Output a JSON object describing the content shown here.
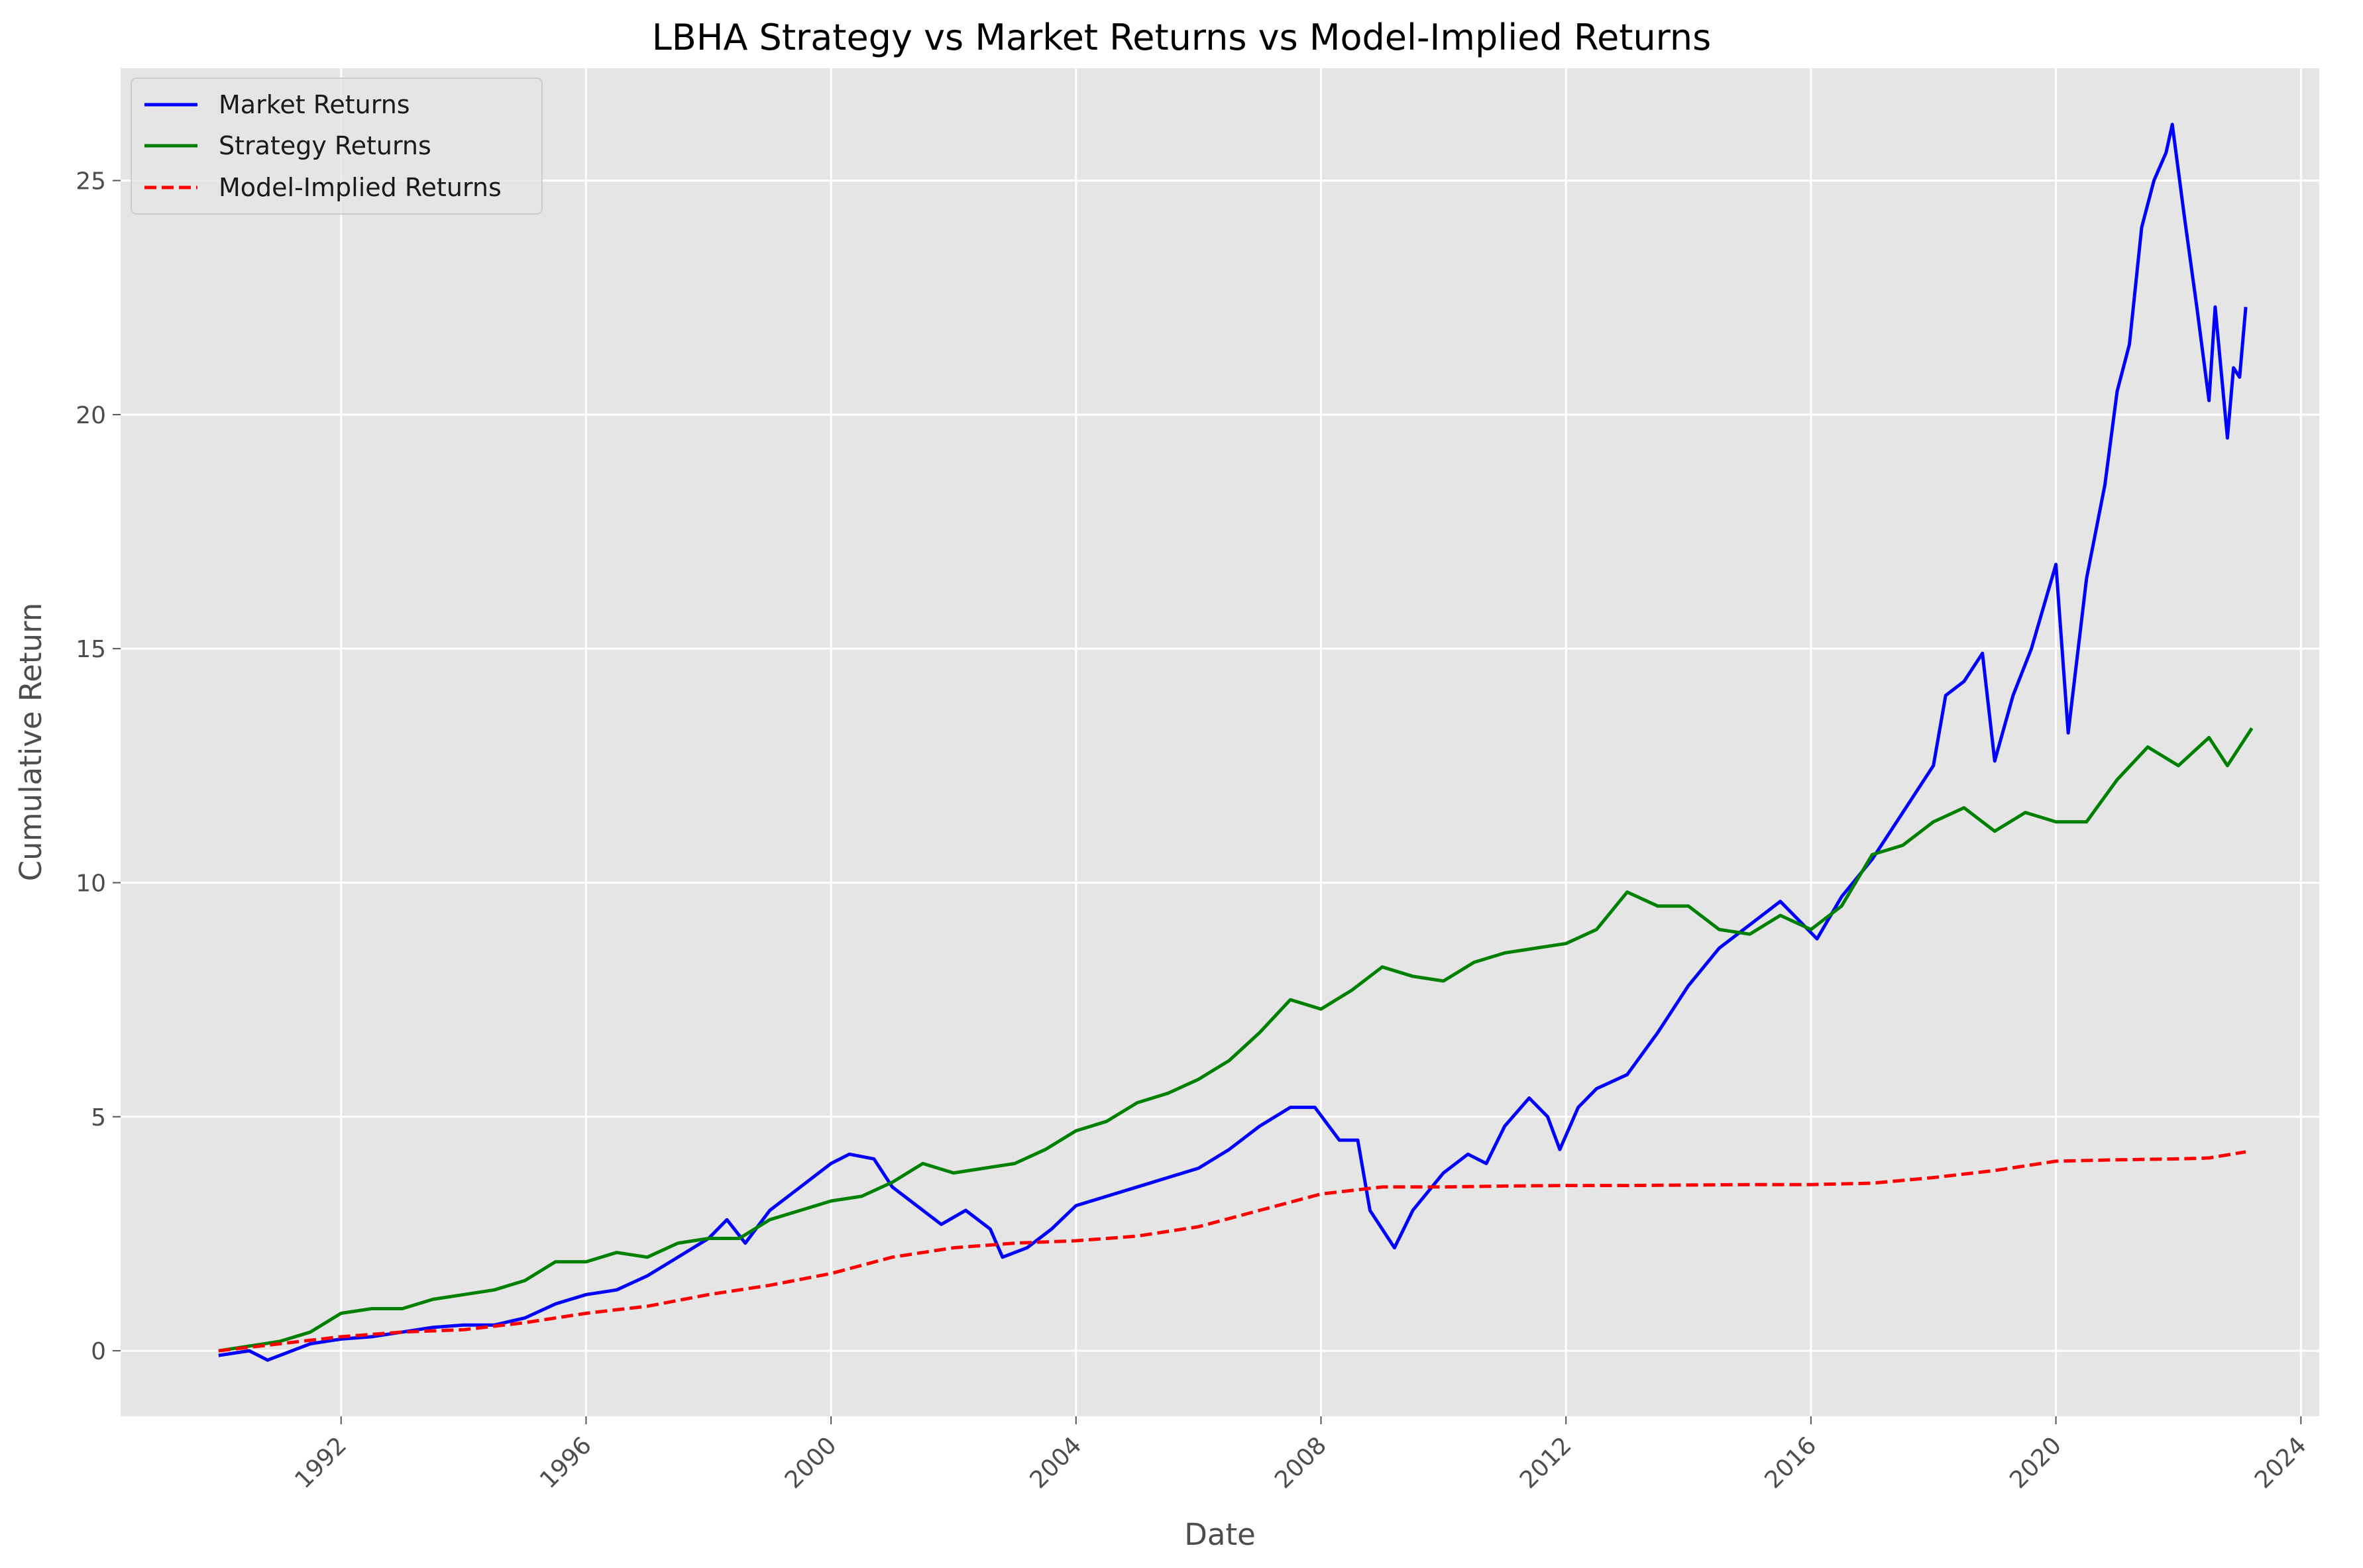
{
  "chart_data": {
    "type": "line",
    "title": "LBHA Strategy vs Market Returns vs Model-Implied Returns",
    "xlabel": "Date",
    "ylabel": "Cumulative Return",
    "x_ticks": [
      "1992",
      "1996",
      "2000",
      "2004",
      "2008",
      "2012",
      "2016",
      "2020",
      "2024"
    ],
    "y_ticks": [
      "0",
      "5",
      "10",
      "15",
      "20",
      "25"
    ],
    "xlim": [
      1988.4,
      2024.3
    ],
    "ylim": [
      -1.4,
      27.4
    ],
    "grid": true,
    "legend_position": "top-left",
    "background_color": "#e5e5e5",
    "grid_color": "#ffffff",
    "series": [
      {
        "name": "Market Returns",
        "color": "#0000ff",
        "style": "solid",
        "points": [
          [
            1990.0,
            -0.1
          ],
          [
            1990.5,
            0.0
          ],
          [
            1990.8,
            -0.2
          ],
          [
            1991.2,
            0.0
          ],
          [
            1991.5,
            0.15
          ],
          [
            1992.0,
            0.25
          ],
          [
            1992.5,
            0.3
          ],
          [
            1993.0,
            0.4
          ],
          [
            1993.5,
            0.5
          ],
          [
            1994.0,
            0.55
          ],
          [
            1994.5,
            0.55
          ],
          [
            1995.0,
            0.7
          ],
          [
            1995.5,
            1.0
          ],
          [
            1996.0,
            1.2
          ],
          [
            1996.5,
            1.3
          ],
          [
            1997.0,
            1.6
          ],
          [
            1997.5,
            2.0
          ],
          [
            1998.0,
            2.4
          ],
          [
            1998.3,
            2.8
          ],
          [
            1998.6,
            2.3
          ],
          [
            1999.0,
            3.0
          ],
          [
            1999.5,
            3.5
          ],
          [
            2000.0,
            4.0
          ],
          [
            2000.3,
            4.2
          ],
          [
            2000.7,
            4.1
          ],
          [
            2001.0,
            3.5
          ],
          [
            2001.3,
            3.2
          ],
          [
            2001.8,
            2.7
          ],
          [
            2002.2,
            3.0
          ],
          [
            2002.6,
            2.6
          ],
          [
            2002.8,
            2.0
          ],
          [
            2003.2,
            2.2
          ],
          [
            2003.6,
            2.6
          ],
          [
            2004.0,
            3.1
          ],
          [
            2004.5,
            3.3
          ],
          [
            2005.0,
            3.5
          ],
          [
            2005.5,
            3.7
          ],
          [
            2006.0,
            3.9
          ],
          [
            2006.5,
            4.3
          ],
          [
            2007.0,
            4.8
          ],
          [
            2007.5,
            5.2
          ],
          [
            2007.9,
            5.2
          ],
          [
            2008.3,
            4.5
          ],
          [
            2008.6,
            4.5
          ],
          [
            2008.8,
            3.0
          ],
          [
            2009.2,
            2.2
          ],
          [
            2009.5,
            3.0
          ],
          [
            2010.0,
            3.8
          ],
          [
            2010.4,
            4.2
          ],
          [
            2010.7,
            4.0
          ],
          [
            2011.0,
            4.8
          ],
          [
            2011.4,
            5.4
          ],
          [
            2011.7,
            5.0
          ],
          [
            2011.9,
            4.3
          ],
          [
            2012.2,
            5.2
          ],
          [
            2012.5,
            5.6
          ],
          [
            2013.0,
            5.9
          ],
          [
            2013.5,
            6.8
          ],
          [
            2014.0,
            7.8
          ],
          [
            2014.5,
            8.6
          ],
          [
            2015.0,
            9.1
          ],
          [
            2015.5,
            9.6
          ],
          [
            2015.8,
            9.2
          ],
          [
            2016.1,
            8.8
          ],
          [
            2016.5,
            9.7
          ],
          [
            2017.0,
            10.5
          ],
          [
            2017.5,
            11.5
          ],
          [
            2018.0,
            12.5
          ],
          [
            2018.2,
            14.0
          ],
          [
            2018.5,
            14.3
          ],
          [
            2018.8,
            14.9
          ],
          [
            2019.0,
            12.6
          ],
          [
            2019.3,
            14.0
          ],
          [
            2019.6,
            15.0
          ],
          [
            2020.0,
            16.8
          ],
          [
            2020.2,
            13.2
          ],
          [
            2020.5,
            16.5
          ],
          [
            2020.8,
            18.5
          ],
          [
            2021.0,
            20.5
          ],
          [
            2021.2,
            21.5
          ],
          [
            2021.4,
            24.0
          ],
          [
            2021.6,
            25.0
          ],
          [
            2021.8,
            25.6
          ],
          [
            2021.9,
            26.2
          ],
          [
            2022.1,
            24.2
          ],
          [
            2022.3,
            22.3
          ],
          [
            2022.5,
            20.3
          ],
          [
            2022.6,
            22.3
          ],
          [
            2022.8,
            19.5
          ],
          [
            2022.9,
            21.0
          ],
          [
            2023.0,
            20.8
          ],
          [
            2023.1,
            22.3
          ]
        ]
      },
      {
        "name": "Strategy Returns",
        "color": "#008000",
        "style": "solid",
        "points": [
          [
            1990.0,
            0.0
          ],
          [
            1990.5,
            0.1
          ],
          [
            1991.0,
            0.2
          ],
          [
            1991.5,
            0.4
          ],
          [
            1992.0,
            0.8
          ],
          [
            1992.5,
            0.9
          ],
          [
            1993.0,
            0.9
          ],
          [
            1993.5,
            1.1
          ],
          [
            1994.0,
            1.2
          ],
          [
            1994.5,
            1.3
          ],
          [
            1995.0,
            1.5
          ],
          [
            1995.5,
            1.9
          ],
          [
            1996.0,
            1.9
          ],
          [
            1996.5,
            2.1
          ],
          [
            1997.0,
            2.0
          ],
          [
            1997.5,
            2.3
          ],
          [
            1998.0,
            2.4
          ],
          [
            1998.5,
            2.4
          ],
          [
            1999.0,
            2.8
          ],
          [
            1999.5,
            3.0
          ],
          [
            2000.0,
            3.2
          ],
          [
            2000.5,
            3.3
          ],
          [
            2001.0,
            3.6
          ],
          [
            2001.5,
            4.0
          ],
          [
            2002.0,
            3.8
          ],
          [
            2002.5,
            3.9
          ],
          [
            2003.0,
            4.0
          ],
          [
            2003.5,
            4.3
          ],
          [
            2004.0,
            4.7
          ],
          [
            2004.5,
            4.9
          ],
          [
            2005.0,
            5.3
          ],
          [
            2005.5,
            5.5
          ],
          [
            2006.0,
            5.8
          ],
          [
            2006.5,
            6.2
          ],
          [
            2007.0,
            6.8
          ],
          [
            2007.5,
            7.5
          ],
          [
            2008.0,
            7.3
          ],
          [
            2008.5,
            7.7
          ],
          [
            2009.0,
            8.2
          ],
          [
            2009.5,
            8.0
          ],
          [
            2010.0,
            7.9
          ],
          [
            2010.5,
            8.3
          ],
          [
            2011.0,
            8.5
          ],
          [
            2011.5,
            8.6
          ],
          [
            2012.0,
            8.7
          ],
          [
            2012.5,
            9.0
          ],
          [
            2013.0,
            9.8
          ],
          [
            2013.5,
            9.5
          ],
          [
            2014.0,
            9.5
          ],
          [
            2014.5,
            9.0
          ],
          [
            2015.0,
            8.9
          ],
          [
            2015.5,
            9.3
          ],
          [
            2016.0,
            9.0
          ],
          [
            2016.5,
            9.5
          ],
          [
            2017.0,
            10.6
          ],
          [
            2017.5,
            10.8
          ],
          [
            2018.0,
            11.3
          ],
          [
            2018.5,
            11.6
          ],
          [
            2019.0,
            11.1
          ],
          [
            2019.5,
            11.5
          ],
          [
            2020.0,
            11.3
          ],
          [
            2020.5,
            11.3
          ],
          [
            2021.0,
            12.2
          ],
          [
            2021.5,
            12.9
          ],
          [
            2022.0,
            12.5
          ],
          [
            2022.5,
            13.1
          ],
          [
            2022.8,
            12.5
          ],
          [
            2023.2,
            13.3
          ]
        ]
      },
      {
        "name": "Model-Implied Returns",
        "color": "#ff0000",
        "style": "dashed",
        "points": [
          [
            1990.0,
            0.0
          ],
          [
            1991.0,
            0.15
          ],
          [
            1992.0,
            0.3
          ],
          [
            1993.0,
            0.4
          ],
          [
            1994.0,
            0.45
          ],
          [
            1995.0,
            0.6
          ],
          [
            1996.0,
            0.8
          ],
          [
            1997.0,
            0.95
          ],
          [
            1998.0,
            1.2
          ],
          [
            1999.0,
            1.4
          ],
          [
            2000.0,
            1.65
          ],
          [
            2001.0,
            2.0
          ],
          [
            2002.0,
            2.2
          ],
          [
            2003.0,
            2.3
          ],
          [
            2004.0,
            2.35
          ],
          [
            2005.0,
            2.45
          ],
          [
            2006.0,
            2.65
          ],
          [
            2007.0,
            3.0
          ],
          [
            2008.0,
            3.35
          ],
          [
            2009.0,
            3.5
          ],
          [
            2010.0,
            3.5
          ],
          [
            2011.0,
            3.52
          ],
          [
            2012.0,
            3.53
          ],
          [
            2013.0,
            3.53
          ],
          [
            2014.0,
            3.54
          ],
          [
            2015.0,
            3.55
          ],
          [
            2016.0,
            3.55
          ],
          [
            2017.0,
            3.58
          ],
          [
            2018.0,
            3.7
          ],
          [
            2019.0,
            3.85
          ],
          [
            2020.0,
            4.05
          ],
          [
            2021.0,
            4.08
          ],
          [
            2022.0,
            4.1
          ],
          [
            2022.5,
            4.12
          ],
          [
            2023.1,
            4.25
          ]
        ]
      }
    ]
  }
}
